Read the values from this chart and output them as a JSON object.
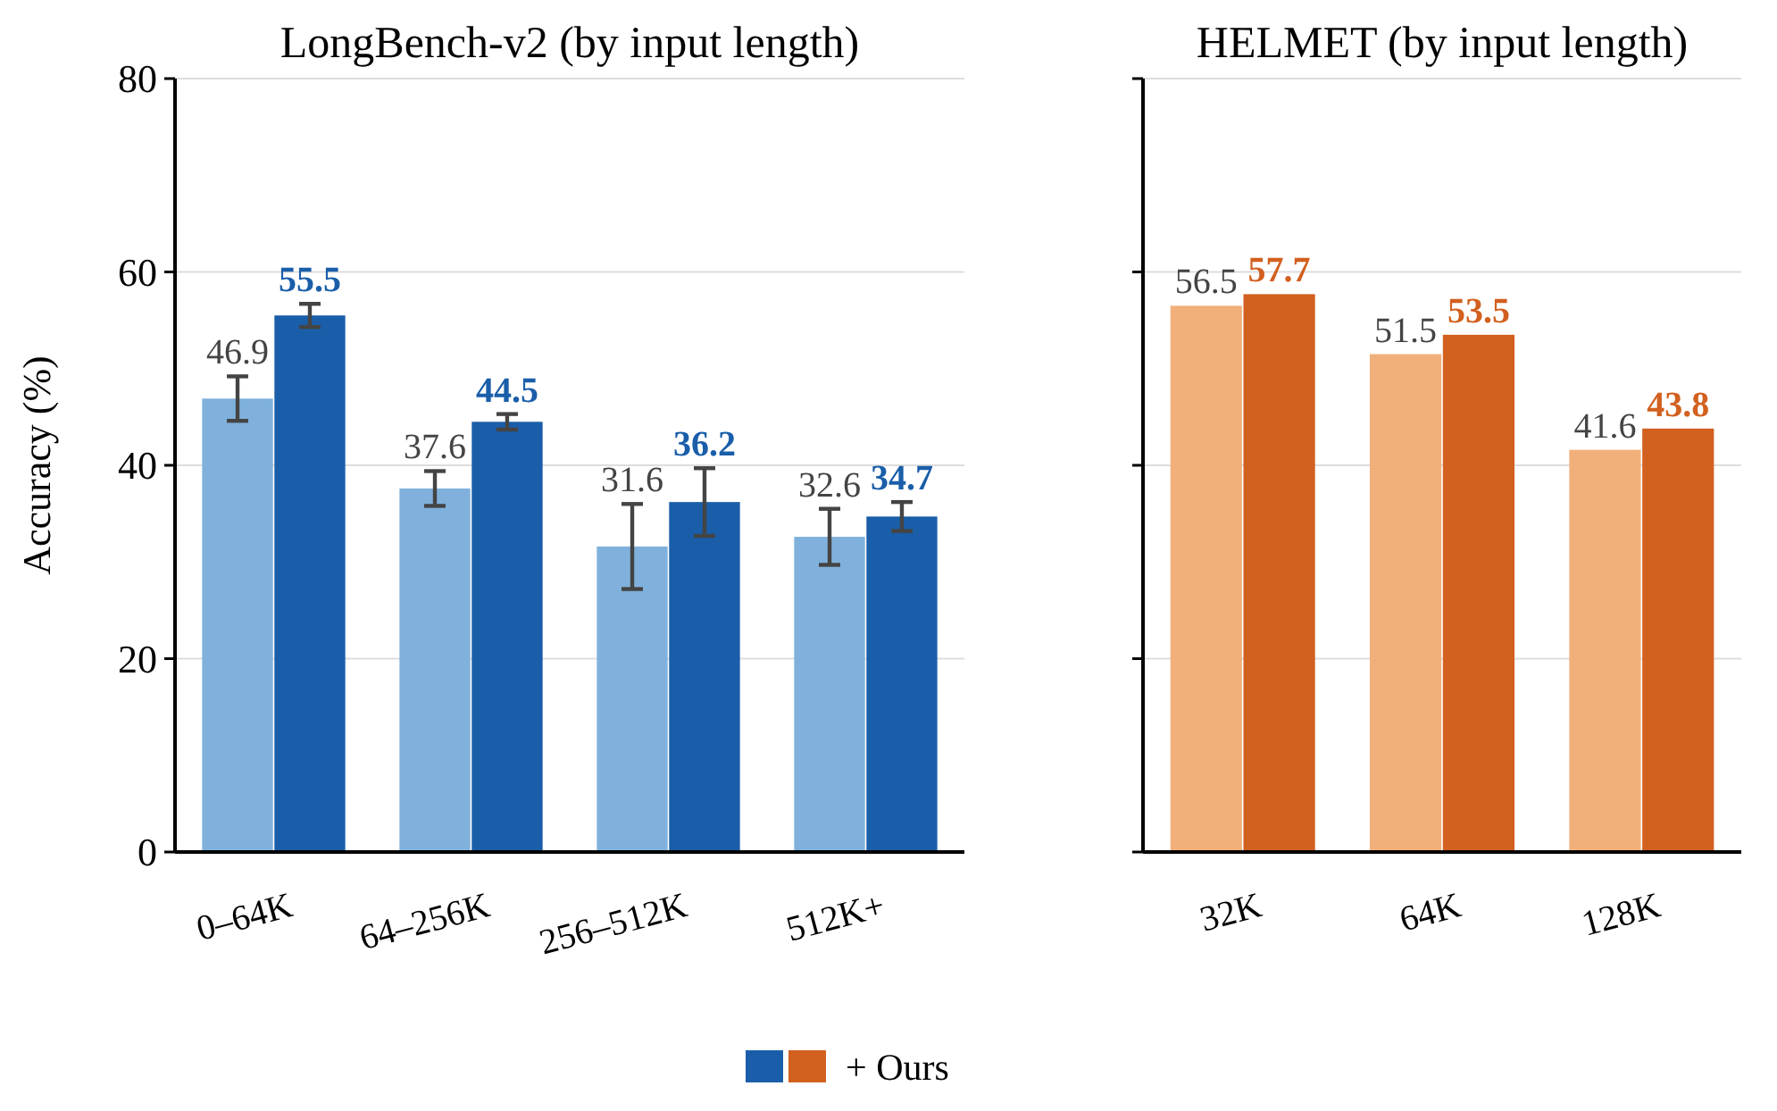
{
  "chart_data": [
    {
      "type": "bar",
      "title": "LongBench-v2 (by input length)",
      "ylabel": "Accuracy (%)",
      "categories": [
        "0–64K",
        "64–256K",
        "256–512K",
        "512K+"
      ],
      "ylim": [
        0,
        80
      ],
      "yticks": [
        0,
        20,
        40,
        60,
        80
      ],
      "grid": "y",
      "data_labels": true,
      "series": [
        {
          "color": "#7fb1dc",
          "values": [
            46.9,
            37.6,
            31.6,
            32.6
          ],
          "errors": [
            2.3,
            1.8,
            4.4,
            2.9
          ]
        },
        {
          "color": "#1a5ea9",
          "values": [
            55.5,
            44.5,
            36.2,
            34.7
          ],
          "errors": [
            1.2,
            0.8,
            3.5,
            1.5
          ]
        }
      ]
    },
    {
      "type": "bar",
      "title": "HELMET (by input length)",
      "categories": [
        "32K",
        "64K",
        "128K"
      ],
      "ylim": [
        0,
        80
      ],
      "yticks": [
        0,
        20,
        40,
        60,
        80
      ],
      "grid": "y",
      "legend": "bottom",
      "data_labels": true,
      "tick_labels": "x",
      "series": [
        {
          "color": "#f1b07a",
          "values": [
            56.5,
            51.5,
            41.6
          ]
        },
        {
          "name": "+ Ours",
          "color": "#d2601f",
          "values": [
            57.7,
            53.5,
            43.8
          ]
        }
      ]
    }
  ]
}
